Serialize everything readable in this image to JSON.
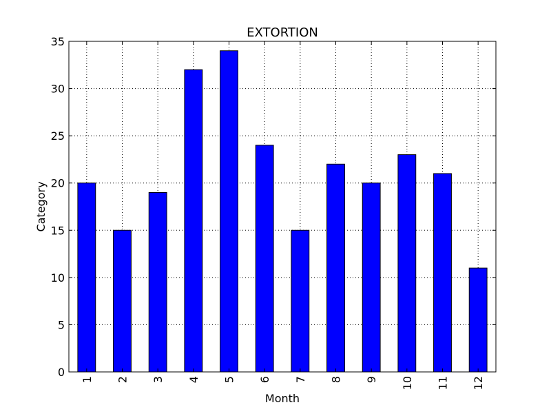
{
  "chart_data": {
    "type": "bar",
    "title": "EXTORTION",
    "xlabel": "Month",
    "ylabel": "Category",
    "categories": [
      "1",
      "2",
      "3",
      "4",
      "5",
      "6",
      "7",
      "8",
      "9",
      "10",
      "11",
      "12"
    ],
    "values": [
      20,
      15,
      19,
      32,
      34,
      24,
      15,
      22,
      20,
      23,
      21,
      11
    ],
    "ylim": [
      0,
      35
    ],
    "yticks": [
      0,
      5,
      10,
      15,
      20,
      25,
      30,
      35
    ],
    "grid": true,
    "bar_color": "#0000ff",
    "legend": "none"
  }
}
